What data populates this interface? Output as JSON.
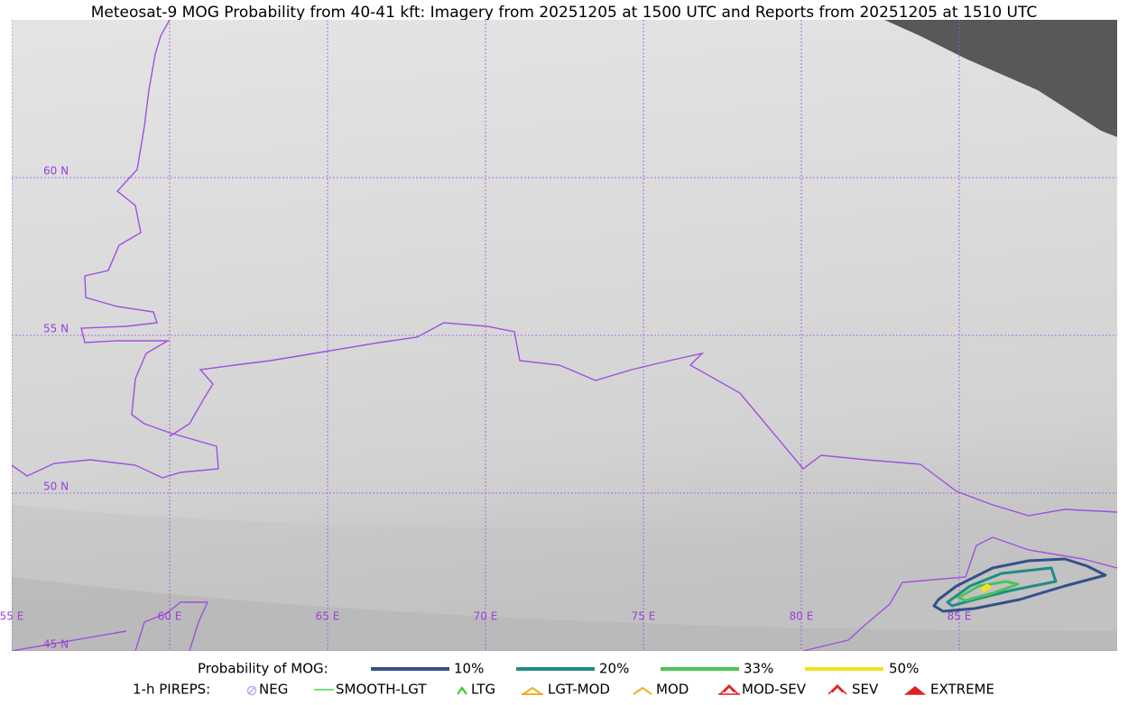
{
  "title": "Meteosat-9 MOG Probability from 40-41 kft: Imagery from 20251205 at 1500 UTC and Reports from 20251205 at 1510 UTC",
  "map": {
    "lonlim": [
      55,
      90
    ],
    "latlim": [
      45,
      65
    ],
    "lat_lines": [
      {
        "value": 60,
        "label": "60 N"
      },
      {
        "value": 55,
        "label": "55 N"
      },
      {
        "value": 50,
        "label": "50 N"
      },
      {
        "value": 45,
        "label": "45 N"
      }
    ],
    "lon_lines": [
      {
        "value": 55,
        "label": "55 E"
      },
      {
        "value": 60,
        "label": "60 E"
      },
      {
        "value": 65,
        "label": "65 E"
      },
      {
        "value": 70,
        "label": "70 E"
      },
      {
        "value": 75,
        "label": "75 E"
      },
      {
        "value": 80,
        "label": "80 E"
      },
      {
        "value": 85,
        "label": "85 E"
      }
    ]
  },
  "legend": {
    "probability_title": "Probability of MOG:",
    "probability": [
      {
        "label": "10%",
        "color": "#34508a"
      },
      {
        "label": "20%",
        "color": "#1f8c86"
      },
      {
        "label": "33%",
        "color": "#4cc35a"
      },
      {
        "label": "50%",
        "color": "#f5e11e"
      }
    ],
    "pireps_title": "1-h PIREPS:",
    "pireps": [
      "NEG",
      "SMOOTH-LGT",
      "LTG",
      "LGT-MOD",
      "MOD",
      "MOD-SEV",
      "SEV",
      "EXTREME"
    ]
  }
}
